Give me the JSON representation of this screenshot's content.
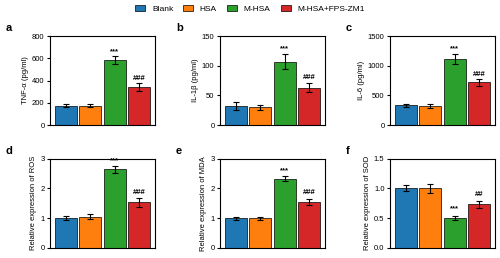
{
  "chart_data": [
    {
      "type": "bar",
      "title": "a",
      "ylabel": "TNF-α (pg/ml)",
      "categories": [
        null
      ],
      "tick_labels": "y",
      "legend": "upper center",
      "ylim": [
        0,
        800
      ],
      "yticks": [
        0,
        200,
        400,
        600,
        800
      ],
      "series": [
        {
          "name": "Blank",
          "values": [
            175
          ],
          "errors": [
            15
          ]
        },
        {
          "name": "HSA",
          "values": [
            175
          ],
          "errors": [
            12
          ]
        },
        {
          "name": "M-HSA",
          "values": [
            585
          ],
          "errors": [
            35
          ]
        },
        {
          "name": "M-HSA+FPS-ZM1",
          "values": [
            345
          ],
          "errors": [
            35
          ]
        }
      ],
      "annotations": [
        {
          "text": "***",
          "series": "M-HSA",
          "y": 630
        },
        {
          "text": "###",
          "series": "M-HSA+FPS-ZM1",
          "y": 390
        }
      ]
    },
    {
      "type": "bar",
      "title": "b",
      "ylabel": "IL-1β (pg/ml)",
      "categories": [
        null
      ],
      "tick_labels": "y",
      "legend": "upper center",
      "ylim": [
        0,
        150
      ],
      "yticks": [
        0,
        50,
        100,
        150
      ],
      "series": [
        {
          "name": "Blank",
          "values": [
            32
          ],
          "errors": [
            6
          ]
        },
        {
          "name": "HSA",
          "values": [
            30
          ],
          "errors": [
            4
          ]
        },
        {
          "name": "M-HSA",
          "values": [
            107
          ],
          "errors": [
            12
          ]
        },
        {
          "name": "M-HSA+FPS-ZM1",
          "values": [
            63
          ],
          "errors": [
            8
          ]
        }
      ],
      "annotations": [
        {
          "text": "***",
          "series": "M-HSA",
          "y": 122
        },
        {
          "text": "###",
          "series": "M-HSA+FPS-ZM1",
          "y": 74
        }
      ]
    },
    {
      "type": "bar",
      "title": "c",
      "ylabel": "IL-6 (pg/ml)",
      "categories": [
        null
      ],
      "tick_labels": "y",
      "legend": "upper center",
      "ylim": [
        0,
        1500
      ],
      "yticks": [
        0,
        500,
        1000,
        1500
      ],
      "series": [
        {
          "name": "Blank",
          "values": [
            330
          ],
          "errors": [
            30
          ]
        },
        {
          "name": "HSA",
          "values": [
            320
          ],
          "errors": [
            30
          ]
        },
        {
          "name": "M-HSA",
          "values": [
            1120
          ],
          "errors": [
            85
          ]
        },
        {
          "name": "M-HSA+FPS-ZM1",
          "values": [
            720
          ],
          "errors": [
            60
          ]
        }
      ],
      "annotations": [
        {
          "text": "***",
          "series": "M-HSA",
          "y": 1235
        },
        {
          "text": "###",
          "series": "M-HSA+FPS-ZM1",
          "y": 800
        }
      ]
    },
    {
      "type": "bar",
      "title": "d",
      "ylabel": "Relative expression of ROS",
      "categories": [
        null
      ],
      "tick_labels": "y",
      "legend": "upper center",
      "ylim": [
        0,
        3
      ],
      "yticks": [
        0,
        1,
        2,
        3
      ],
      "series": [
        {
          "name": "Blank",
          "values": [
            1.0
          ],
          "errors": [
            0.06
          ]
        },
        {
          "name": "HSA",
          "values": [
            1.05
          ],
          "errors": [
            0.08
          ]
        },
        {
          "name": "M-HSA",
          "values": [
            2.65
          ],
          "errors": [
            0.12
          ]
        },
        {
          "name": "M-HSA+FPS-ZM1",
          "values": [
            1.53
          ],
          "errors": [
            0.15
          ]
        }
      ],
      "annotations": [
        {
          "text": "***",
          "series": "M-HSA",
          "y": 2.83
        },
        {
          "text": "###",
          "series": "M-HSA+FPS-ZM1",
          "y": 1.76
        }
      ]
    },
    {
      "type": "bar",
      "title": "e",
      "ylabel": "Relative expression of MDA",
      "categories": [
        null
      ],
      "tick_labels": "y",
      "legend": "upper center",
      "ylim": [
        0,
        3
      ],
      "yticks": [
        0,
        1,
        2,
        3
      ],
      "series": [
        {
          "name": "Blank",
          "values": [
            1.0
          ],
          "errors": [
            0.05
          ]
        },
        {
          "name": "HSA",
          "values": [
            1.0
          ],
          "errors": [
            0.05
          ]
        },
        {
          "name": "M-HSA",
          "values": [
            2.33
          ],
          "errors": [
            0.08
          ]
        },
        {
          "name": "M-HSA+FPS-ZM1",
          "values": [
            1.55
          ],
          "errors": [
            0.1
          ]
        }
      ],
      "annotations": [
        {
          "text": "***",
          "series": "M-HSA",
          "y": 2.48
        },
        {
          "text": "###",
          "series": "M-HSA+FPS-ZM1",
          "y": 1.73
        }
      ]
    },
    {
      "type": "bar",
      "title": "f",
      "ylabel": "Relative expression of SOD",
      "categories": [
        null
      ],
      "tick_labels": "y",
      "legend": "upper center",
      "ylim": [
        0.0,
        1.5
      ],
      "yticks": [
        0.0,
        0.5,
        1.0,
        1.5
      ],
      "series": [
        {
          "name": "Blank",
          "values": [
            1.0
          ],
          "errors": [
            0.05
          ]
        },
        {
          "name": "HSA",
          "values": [
            1.0
          ],
          "errors": [
            0.08
          ]
        },
        {
          "name": "M-HSA",
          "values": [
            0.5
          ],
          "errors": [
            0.04
          ]
        },
        {
          "name": "M-HSA+FPS-ZM1",
          "values": [
            0.73
          ],
          "errors": [
            0.06
          ]
        }
      ],
      "annotations": [
        {
          "text": "***",
          "series": "M-HSA",
          "y": 0.59
        },
        {
          "text": "##",
          "series": "M-HSA+FPS-ZM1",
          "y": 0.83
        }
      ]
    }
  ]
}
